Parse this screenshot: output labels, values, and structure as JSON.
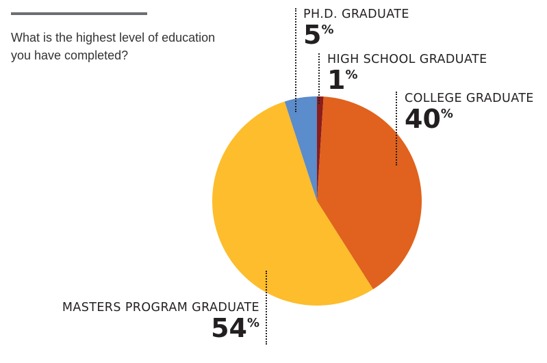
{
  "question": {
    "lines": [
      "What is the highest level of education",
      "you have completed?"
    ]
  },
  "chart_data": {
    "type": "pie",
    "title": "What is the highest level of education you have completed?",
    "slices": [
      {
        "label": "HIGH SCHOOL GRADUATE",
        "value": 1,
        "display": "1",
        "color": "#8b1d1b"
      },
      {
        "label": "COLLEGE GRADUATE",
        "value": 40,
        "display": "40",
        "color": "#e0621e"
      },
      {
        "label": "MASTERS PROGRAM GRADUATE",
        "value": 54,
        "display": "54",
        "color": "#fdbd2c"
      },
      {
        "label": "PH.D. GRADUATE",
        "value": 5,
        "display": "5",
        "color": "#5b8ccb"
      }
    ],
    "percent_symbol": "%"
  }
}
